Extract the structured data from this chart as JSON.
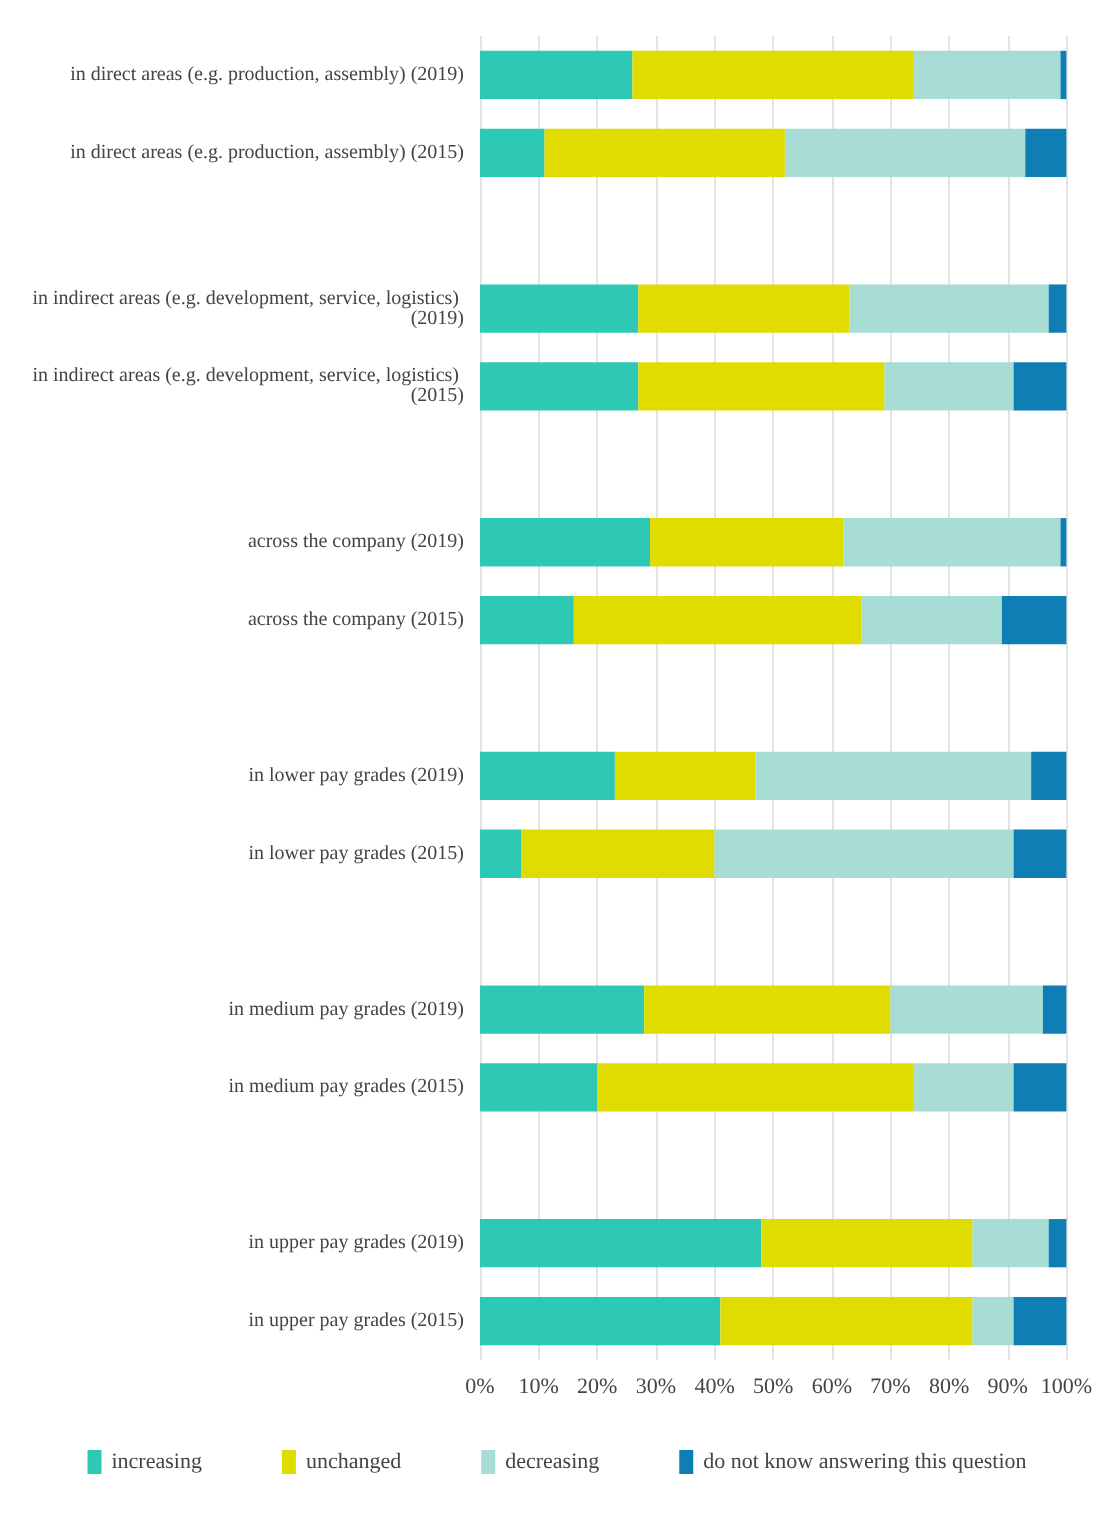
{
  "chart_data": {
    "type": "bar",
    "orientation": "horizontal",
    "stacked": true,
    "categories": [
      "in direct areas (e.g. production, assembly) (2019)",
      "in direct areas (e.g. production, assembly) (2015)",
      null,
      "in indirect areas (e.g. development, service, logistics) (2019)",
      "in indirect areas (e.g. development, service, logistics) (2015)",
      null,
      "across the company (2019)",
      "across the company (2015)",
      null,
      "in lower pay grades (2019)",
      "in lower pay grades (2015)",
      null,
      "in medium pay grades (2019)",
      "in medium pay grades (2015)",
      null,
      "in upper pay grades (2019)",
      "in upper pay grades (2015)"
    ],
    "series": [
      {
        "name": "increasing",
        "color": "#2ec9b4",
        "values": [
          26,
          11,
          null,
          27,
          27,
          null,
          29,
          16,
          null,
          23,
          7,
          null,
          28,
          20,
          null,
          48,
          41
        ]
      },
      {
        "name": "unchanged",
        "color": "#e0dc00",
        "values": [
          48,
          41,
          null,
          36,
          42,
          null,
          33,
          49,
          null,
          24,
          33,
          null,
          42,
          54,
          null,
          36,
          43
        ]
      },
      {
        "name": "decreasing",
        "color": "#a8ddd5",
        "values": [
          25,
          41,
          null,
          34,
          22,
          null,
          37,
          24,
          null,
          47,
          51,
          null,
          26,
          17,
          null,
          13,
          7
        ]
      },
      {
        "name": "do not know answering this question",
        "color": "#0f7eb5",
        "values": [
          1,
          7,
          null,
          3,
          9,
          null,
          1,
          11,
          null,
          6,
          9,
          null,
          4,
          9,
          null,
          3,
          9
        ]
      }
    ],
    "xlim": [
      0,
      100
    ],
    "xticks": [
      {
        "value": 0,
        "label": "0%"
      },
      {
        "value": 10,
        "label": "10%"
      },
      {
        "value": 20,
        "label": "20%"
      },
      {
        "value": 30,
        "label": "30%"
      },
      {
        "value": 40,
        "label": "40%"
      },
      {
        "value": 50,
        "label": "50%"
      },
      {
        "value": 60,
        "label": "60%"
      },
      {
        "value": 70,
        "label": "70%"
      },
      {
        "value": 80,
        "label": "80%"
      },
      {
        "value": 90,
        "label": "90%"
      },
      {
        "value": 100,
        "label": "100%"
      }
    ],
    "grid": "x",
    "legend": "bottom"
  }
}
